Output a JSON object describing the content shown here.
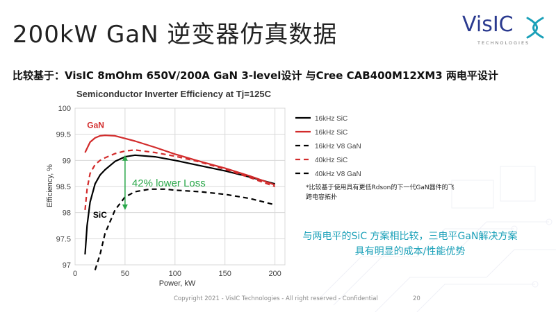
{
  "slide": {
    "title": "200kW GaN 逆变器仿真数据",
    "subtitle": "比较基于：VisIC 8mOhm 650V/200A GaN 3-level设计 与Cree CAB400M12XM3 两电平设计",
    "note_line1": "*比较基于使用具有更低Rdson的下一代GaN器件的飞",
    "note_line2": "跨电容拓扑",
    "callout_line1": "与两电平的SiC 方案相比较，三电平GaN解决方案",
    "callout_line2": "具有明显的成本/性能优势",
    "footer": "Copyright 2021 - VisIC Technologies - All right reserved - Confidential",
    "page_number": "20"
  },
  "logo": {
    "text": "VisIC",
    "tagline": "TECHNOLOGIES",
    "text_color": "#2a3a8f",
    "mark_color": "#1aa0b8"
  },
  "chart_data": {
    "type": "line",
    "title": "Semiconductor Inverter Efficiency at Tj=125C",
    "xlabel": "Power, kW",
    "ylabel": "Efficiency, %",
    "xlim": [
      0,
      210
    ],
    "ylim": [
      97,
      100
    ],
    "x_ticks": [
      0,
      50,
      100,
      150,
      200
    ],
    "y_ticks": [
      97,
      97.5,
      98,
      98.5,
      99,
      99.5,
      100
    ],
    "y_tick_labels": [
      "97",
      "97.5",
      "98",
      "98.5",
      "99",
      "99.5",
      "100"
    ],
    "grid": true,
    "legend_position": "right",
    "annotations": {
      "gan_label": "GaN",
      "sic_label": "SiC",
      "loss_label": "42% lower Loss",
      "arrow": {
        "x": 50,
        "y_from": 98.05,
        "y_to": 99.1
      }
    },
    "series": [
      {
        "name": "16kHz SiC",
        "color": "#000000",
        "dash": "solid",
        "x": [
          10,
          12,
          15,
          20,
          25,
          30,
          40,
          50,
          60,
          80,
          100,
          125,
          150,
          175,
          200
        ],
        "y": [
          97.2,
          97.75,
          98.2,
          98.55,
          98.72,
          98.82,
          98.98,
          99.07,
          99.1,
          99.07,
          99.0,
          98.9,
          98.8,
          98.68,
          98.55
        ]
      },
      {
        "name": "16kHz SiC",
        "color": "#d22b2b",
        "dash": "solid",
        "x": [
          10,
          15,
          20,
          25,
          30,
          40,
          50,
          60,
          80,
          100,
          125,
          150,
          175,
          200
        ],
        "y": [
          99.15,
          99.35,
          99.43,
          99.47,
          99.48,
          99.47,
          99.42,
          99.37,
          99.25,
          99.12,
          98.98,
          98.85,
          98.7,
          98.53
        ]
      },
      {
        "name": "16kHz V8 GaN",
        "color": "#000000",
        "dash": "dashed",
        "x": [
          20,
          25,
          30,
          40,
          50,
          60,
          75,
          90,
          100,
          125,
          150,
          175,
          200
        ],
        "y": [
          96.9,
          97.2,
          97.6,
          98.05,
          98.3,
          98.4,
          98.45,
          98.45,
          98.43,
          98.4,
          98.35,
          98.27,
          98.15
        ]
      },
      {
        "name": "40kHz SiC",
        "color": "#d22b2b",
        "dash": "dashed",
        "x": [
          10,
          12,
          15,
          20,
          25,
          30,
          40,
          50,
          60,
          80,
          100,
          125,
          150,
          175,
          200
        ],
        "y": [
          98.05,
          98.45,
          98.75,
          98.92,
          99.0,
          99.05,
          99.13,
          99.18,
          99.2,
          99.15,
          99.08,
          98.97,
          98.83,
          98.67,
          98.5
        ]
      },
      {
        "name": "40kHz V8 GaN",
        "color": "#000000",
        "dash": "dashed",
        "x": [],
        "y": []
      }
    ]
  }
}
